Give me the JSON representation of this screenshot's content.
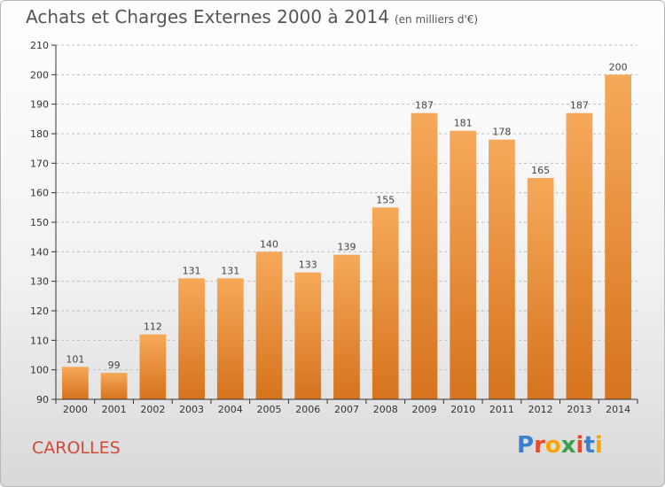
{
  "title": "Achats et Charges Externes 2000 à 2014",
  "subtitle": "(en milliers d'€)",
  "commune": "CAROLLES",
  "logo": {
    "letters": [
      "P",
      "r",
      "o",
      "x",
      "i",
      "t",
      "i"
    ],
    "colors": [
      "#3a7fd0",
      "#e64a2e",
      "#f5a500",
      "#3aa14a",
      "#e64a2e",
      "#3a7fd0",
      "#f5a500"
    ]
  },
  "colors": {
    "bar_top": "#f6a95a",
    "bar_bottom": "#d6731d",
    "axis": "#333333",
    "grid": "#bdbdbd",
    "commune": "#d04a3c"
  },
  "chart_data": {
    "type": "bar",
    "title": "Achats et Charges Externes 2000 à 2014",
    "subtitle": "(en milliers d'€)",
    "categories": [
      "2000",
      "2001",
      "2002",
      "2003",
      "2004",
      "2005",
      "2006",
      "2007",
      "2008",
      "2009",
      "2010",
      "2011",
      "2012",
      "2013",
      "2014"
    ],
    "values": [
      101,
      99,
      112,
      131,
      131,
      140,
      133,
      139,
      155,
      187,
      181,
      178,
      165,
      187,
      200
    ],
    "ylim": [
      90,
      210
    ],
    "yticks": [
      90,
      100,
      110,
      120,
      130,
      140,
      150,
      160,
      170,
      180,
      190,
      200,
      210
    ],
    "grid": true,
    "data_labels": true
  }
}
